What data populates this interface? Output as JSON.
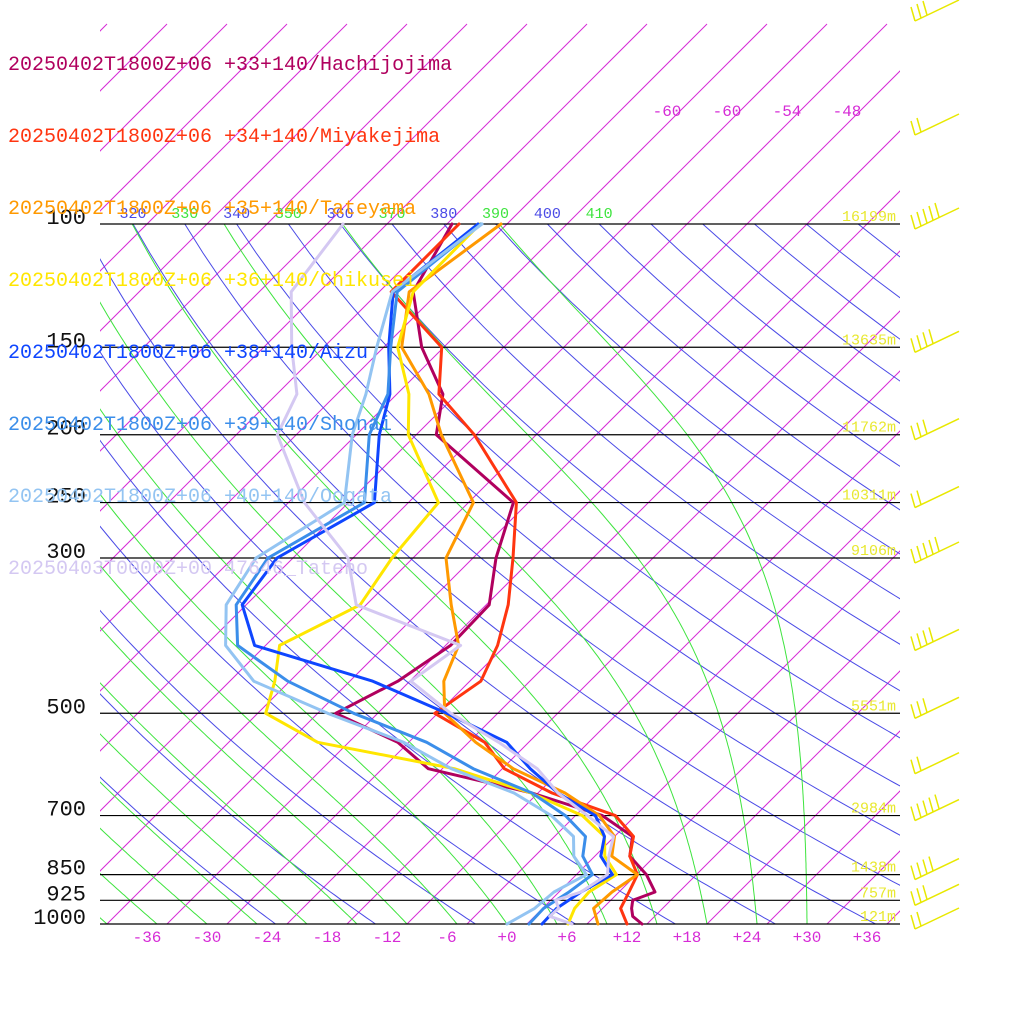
{
  "chart_data": {
    "type": "line",
    "chart_kind": "skew-t log-p sounding",
    "pressure_levels": [
      {
        "p": 100,
        "label": "100",
        "height": "16199m"
      },
      {
        "p": 150,
        "label": "150",
        "height": "13635m"
      },
      {
        "p": 200,
        "label": "200",
        "height": "11762m"
      },
      {
        "p": 250,
        "label": "250",
        "height": "10311m"
      },
      {
        "p": 300,
        "label": "300",
        "height": "9106m"
      },
      {
        "p": 500,
        "label": "500",
        "height": "5551m"
      },
      {
        "p": 700,
        "label": "700",
        "height": "2984m"
      },
      {
        "p": 850,
        "label": "850",
        "height": "1438m"
      },
      {
        "p": 925,
        "label": "925",
        "height": "757m"
      },
      {
        "p": 1000,
        "label": "1000",
        "height": "121m"
      }
    ],
    "temperature_ticks": [
      "-36",
      "-30",
      "-24",
      "-18",
      "-12",
      "-6",
      "+0",
      "+6",
      "+12",
      "+18",
      "+24",
      "+30",
      "+36"
    ],
    "temperature_tick_values": [
      -36,
      -30,
      -24,
      -18,
      -12,
      -6,
      0,
      6,
      12,
      18,
      24,
      30,
      36
    ],
    "upper_isotherm_labels": [
      "-60",
      "-60",
      "-54",
      "-48"
    ],
    "theta_labels": [
      "320",
      "330",
      "340",
      "350",
      "360",
      "370",
      "380",
      "390",
      "400",
      "410"
    ],
    "theta_values": [
      310,
      320,
      330,
      340,
      350,
      360,
      370,
      380,
      390,
      400,
      410
    ],
    "series": [
      {
        "name": "20250402T1800Z+06 +33+140/Hachijojima",
        "color": "#b0005e",
        "p": [
          1000,
          975,
          950,
          925,
          900,
          850,
          800,
          750,
          700,
          650,
          600,
          550,
          500,
          450,
          400,
          350,
          300,
          250,
          200,
          175,
          150,
          125,
          100
        ],
        "T": [
          13.5,
          11.8,
          10.9,
          10.2,
          11.6,
          9.0,
          5.5,
          3.8,
          -1.3,
          -10.6,
          -23.4,
          -29.1,
          -38.2,
          -35.2,
          -33.5,
          -33.7,
          -37.7,
          -41.5,
          -56.0,
          -59.4,
          -66.2,
          -72.6,
          -75.5
        ]
      },
      {
        "name": "20250402T1800Z+06 +34+140/Miyakejima",
        "color": "#ff3510",
        "p": [
          1000,
          950,
          900,
          850,
          800,
          750,
          700,
          650,
          600,
          550,
          500,
          450,
          400,
          350,
          300,
          250,
          200,
          175,
          150,
          125,
          100
        ],
        "T": [
          12.0,
          9.8,
          9.0,
          8.1,
          5.5,
          3.9,
          0.0,
          -8.6,
          -15.8,
          -20.4,
          -28.3,
          -26.9,
          -28.8,
          -31.8,
          -36.0,
          -41.2,
          -52.2,
          -59.8,
          -64.2,
          -74.8,
          -74.8
        ]
      },
      {
        "name": "20250402T1800Z+06 +35+140/Tateyama",
        "color": "#ff9900",
        "p": [
          1000,
          950,
          900,
          850,
          800,
          750,
          700,
          650,
          600,
          550,
          500,
          450,
          400,
          350,
          300,
          250,
          200,
          175,
          150,
          125,
          100
        ],
        "T": [
          9.1,
          7.1,
          7.3,
          8.1,
          3.7,
          2.0,
          -1.6,
          -7.3,
          -14.9,
          -21.3,
          -27.3,
          -30.6,
          -32.7,
          -37.5,
          -42.7,
          -45.5,
          -55.5,
          -60.8,
          -68.2,
          -73.0,
          -70.6
        ]
      },
      {
        "name": "20250402T1800Z+06 +36+140/Chikusei",
        "color": "#ffe600",
        "p": [
          1000,
          950,
          900,
          850,
          800,
          750,
          700,
          650,
          600,
          550,
          500,
          450,
          400,
          350,
          300,
          250,
          200,
          175,
          150,
          125,
          100
        ],
        "T": [
          6.1,
          5.2,
          5.0,
          6.0,
          3.0,
          1.0,
          -3.3,
          -10.7,
          -20.8,
          -37.1,
          -45.2,
          -47.5,
          -50.6,
          -46.6,
          -48.1,
          -49.0,
          -58.8,
          -62.8,
          -68.6,
          -72.6,
          -72.7
        ]
      },
      {
        "name": "20250402T1800Z+06 +38+140/Aizu",
        "color": "#0f46ff",
        "p": [
          1000,
          950,
          900,
          850,
          800,
          750,
          700,
          650,
          600,
          550,
          500,
          450,
          400,
          350,
          300,
          250,
          200,
          175,
          150,
          125,
          100
        ],
        "T": [
          3.5,
          3.4,
          4.2,
          5.6,
          2.6,
          1.0,
          -2.0,
          -8.0,
          -13.2,
          -18.2,
          -27.1,
          -37.7,
          -53.1,
          -58.4,
          -59.6,
          -55.4,
          -61.7,
          -64.7,
          -69.5,
          -74.6,
          -72.9
        ]
      },
      {
        "name": "20250402T1800Z+06 +39+140/Shonai",
        "color": "#3b8eea",
        "p": [
          1000,
          950,
          900,
          850,
          800,
          750,
          700,
          650,
          600,
          550,
          500,
          450,
          400,
          350,
          300,
          250,
          200,
          175,
          150,
          125,
          100
        ],
        "T": [
          2.2,
          2.1,
          3.0,
          3.6,
          0.8,
          -0.9,
          -5.0,
          -10.6,
          -18.9,
          -26.2,
          -36.4,
          -46.2,
          -54.8,
          -59.0,
          -60.5,
          -56.4,
          -62.7,
          -64.9,
          -69.3,
          -74.2,
          -72.6
        ]
      },
      {
        "name": "20250402T1800Z+06 +40+140/Oogata",
        "color": "#93c4f2",
        "p": [
          1000,
          950,
          900,
          850,
          800,
          750,
          700,
          650,
          600,
          550,
          500,
          450,
          400,
          350,
          300,
          250,
          200,
          175,
          150,
          125,
          100
        ],
        "T": [
          0.0,
          1.2,
          1.5,
          3.0,
          -0.1,
          -2.1,
          -6.4,
          -12.4,
          -21.1,
          -28.5,
          -39.0,
          -49.6,
          -56.0,
          -60.0,
          -61.7,
          -58.4,
          -64.4,
          -67.1,
          -70.7,
          -74.7,
          -72.5
        ]
      },
      {
        "name": "20250403T0000Z+00 47646_Tateno",
        "color": "#d4c8f2",
        "p": [
          1000,
          975,
          950,
          925,
          900,
          850,
          800,
          750,
          700,
          650,
          600,
          550,
          500,
          450,
          400,
          350,
          300,
          250,
          200,
          175,
          150,
          125,
          100
        ],
        "T": [
          6.5,
          3.5,
          3.6,
          2.5,
          4.2,
          5.1,
          3.4,
          1.9,
          -2.8,
          -8.0,
          -12.5,
          -19.0,
          -26.7,
          -33.9,
          -32.5,
          -47.0,
          -52.5,
          -62.4,
          -71.9,
          -74.0,
          -79.2,
          -84.8,
          -86.4
        ]
      }
    ]
  }
}
